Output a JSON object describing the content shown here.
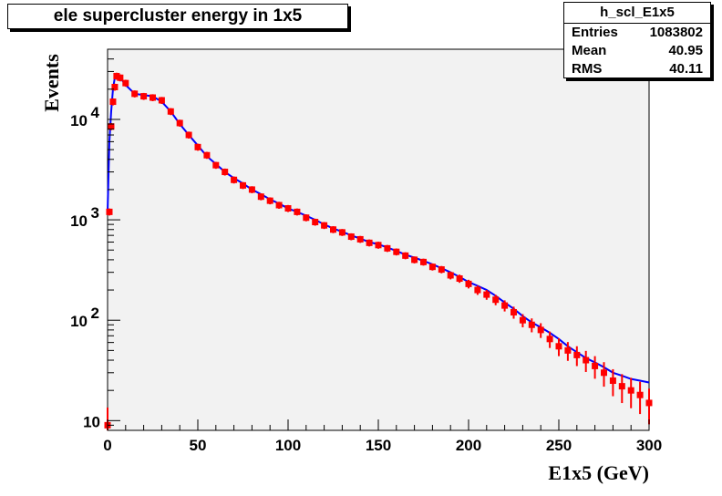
{
  "title": "ele supercluster energy in 1x5",
  "stats": {
    "name": "h_scl_E1x5",
    "rows": [
      {
        "label": "Entries",
        "value": "1083802"
      },
      {
        "label": "Mean",
        "value": "40.95"
      },
      {
        "label": "RMS",
        "value": "40.11"
      }
    ]
  },
  "colors": {
    "frame_bg": "#f2f2f2",
    "series_blue": "#0000ff",
    "series_red": "#ff0000"
  },
  "chart_data": {
    "type": "line",
    "title": "ele supercluster energy in 1x5",
    "xlabel": "E1x5 (GeV)",
    "ylabel": "Events",
    "xlim": [
      0,
      300
    ],
    "ylim": [
      8,
      50000
    ],
    "log_y": true,
    "x_ticks": [
      "0",
      "50",
      "100",
      "150",
      "200",
      "250",
      "300"
    ],
    "y_ticks": [
      {
        "base": "10",
        "exp": ""
      },
      {
        "base": "10",
        "exp": "2"
      },
      {
        "base": "10",
        "exp": "3"
      },
      {
        "base": "10",
        "exp": "4"
      }
    ],
    "series": [
      {
        "color": "blue",
        "style": "line",
        "x": [
          0,
          1,
          2,
          3,
          4,
          5,
          7,
          10,
          15,
          20,
          25,
          30,
          35,
          40,
          45,
          50,
          55,
          60,
          65,
          70,
          75,
          80,
          85,
          90,
          95,
          100,
          105,
          110,
          115,
          120,
          125,
          130,
          135,
          140,
          145,
          150,
          155,
          160,
          165,
          170,
          175,
          180,
          185,
          190,
          195,
          200,
          205,
          210,
          215,
          220,
          225,
          230,
          235,
          240,
          245,
          250,
          255,
          260,
          265,
          270,
          275,
          280,
          285,
          290,
          295,
          300
        ],
        "y": [
          1200,
          6000,
          12000,
          20000,
          26000,
          27000,
          26000,
          22000,
          18000,
          17500,
          17000,
          15000,
          12000,
          9000,
          7000,
          5500,
          4300,
          3600,
          3000,
          2600,
          2300,
          2000,
          1800,
          1600,
          1450,
          1300,
          1200,
          1100,
          1000,
          900,
          820,
          760,
          700,
          650,
          600,
          570,
          530,
          490,
          450,
          420,
          390,
          360,
          330,
          300,
          270,
          240,
          220,
          200,
          175,
          150,
          130,
          110,
          95,
          85,
          75,
          65,
          55,
          48,
          42,
          38,
          34,
          30,
          28,
          26,
          25,
          24
        ]
      },
      {
        "color": "red",
        "style": "markers+errors",
        "x": [
          0,
          1,
          2,
          3,
          4,
          5,
          7,
          10,
          15,
          20,
          25,
          30,
          35,
          40,
          45,
          50,
          55,
          60,
          65,
          70,
          75,
          80,
          85,
          90,
          95,
          100,
          105,
          110,
          115,
          120,
          125,
          130,
          135,
          140,
          145,
          150,
          155,
          160,
          165,
          170,
          175,
          180,
          185,
          190,
          195,
          200,
          205,
          210,
          215,
          220,
          225,
          230,
          235,
          240,
          245,
          250,
          255,
          260,
          265,
          270,
          275,
          280,
          285,
          290,
          295,
          300
        ],
        "y": [
          9,
          1200,
          8500,
          15000,
          21000,
          27000,
          26000,
          23000,
          18000,
          17000,
          16500,
          15500,
          12000,
          9200,
          7000,
          5300,
          4400,
          3500,
          3000,
          2500,
          2200,
          2000,
          1700,
          1550,
          1400,
          1300,
          1200,
          1050,
          950,
          880,
          800,
          750,
          680,
          640,
          590,
          560,
          520,
          480,
          440,
          400,
          380,
          340,
          320,
          280,
          260,
          230,
          200,
          180,
          160,
          140,
          120,
          100,
          90,
          80,
          65,
          55,
          50,
          45,
          40,
          35,
          30,
          25,
          22,
          20,
          18,
          15
        ]
      }
    ]
  }
}
